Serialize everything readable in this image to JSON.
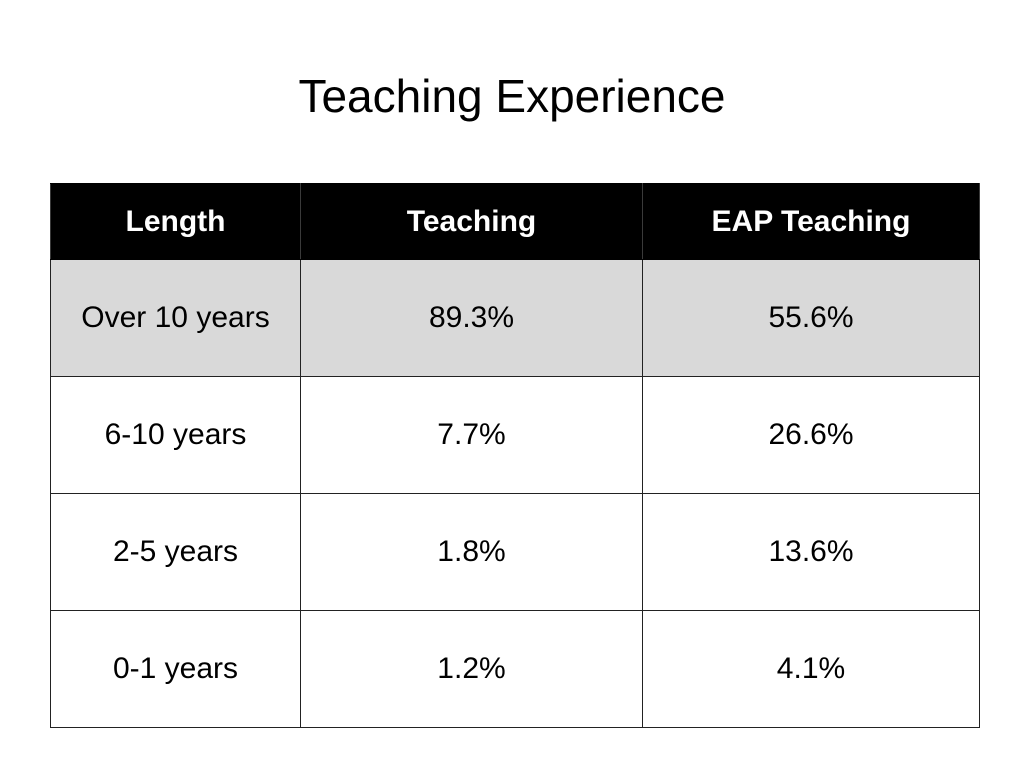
{
  "title": "Teaching Experience",
  "table": {
    "headers": [
      "Length",
      "Teaching",
      "EAP Teaching"
    ],
    "rows": [
      [
        "Over 10 years",
        "89.3%",
        "55.6%"
      ],
      [
        "6-10 years",
        "7.7%",
        "26.6%"
      ],
      [
        "2-5 years",
        "1.8%",
        "13.6%"
      ],
      [
        "0-1 years",
        "1.2%",
        "4.1%"
      ]
    ]
  },
  "colors": {
    "header_background": "#000000",
    "header_text": "#ffffff",
    "first_row_shade": "#d9d9d9"
  }
}
